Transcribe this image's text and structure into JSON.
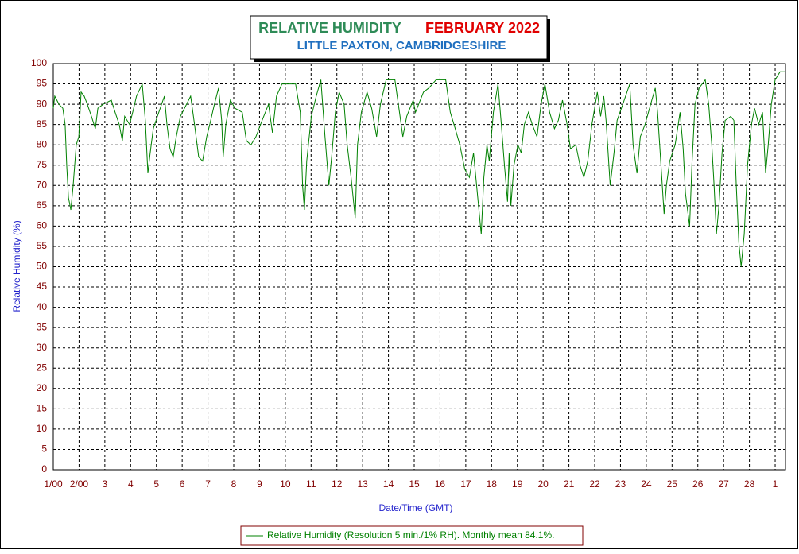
{
  "chart_data": {
    "type": "line",
    "title": "RELATIVE HUMIDITY",
    "title_month": "FEBRUARY 2022",
    "subtitle": "LITTLE PAXTON, CAMBRIDGESHIRE",
    "x_label": "Date/Time (GMT)",
    "y_label": "Relative Humidity (%)",
    "xlim": [
      0,
      28.4
    ],
    "ylim": [
      0,
      100
    ],
    "xticks": [
      {
        "value": 0,
        "label": "1/00"
      },
      {
        "value": 1,
        "label": "2/00"
      },
      {
        "value": 2,
        "label": "3"
      },
      {
        "value": 3,
        "label": "4"
      },
      {
        "value": 4,
        "label": "5"
      },
      {
        "value": 5,
        "label": "6"
      },
      {
        "value": 6,
        "label": "7"
      },
      {
        "value": 7,
        "label": "8"
      },
      {
        "value": 8,
        "label": "9"
      },
      {
        "value": 9,
        "label": "10"
      },
      {
        "value": 10,
        "label": "11"
      },
      {
        "value": 11,
        "label": "12"
      },
      {
        "value": 12,
        "label": "13"
      },
      {
        "value": 13,
        "label": "14"
      },
      {
        "value": 14,
        "label": "15"
      },
      {
        "value": 15,
        "label": "16"
      },
      {
        "value": 16,
        "label": "17"
      },
      {
        "value": 17,
        "label": "18"
      },
      {
        "value": 18,
        "label": "19"
      },
      {
        "value": 19,
        "label": "20"
      },
      {
        "value": 20,
        "label": "21"
      },
      {
        "value": 21,
        "label": "22"
      },
      {
        "value": 22,
        "label": "23"
      },
      {
        "value": 23,
        "label": "24"
      },
      {
        "value": 24,
        "label": "25"
      },
      {
        "value": 25,
        "label": "26"
      },
      {
        "value": 26,
        "label": "27"
      },
      {
        "value": 27,
        "label": "28"
      },
      {
        "value": 28,
        "label": "1"
      }
    ],
    "yticks": [
      0,
      5,
      10,
      15,
      20,
      25,
      30,
      35,
      40,
      45,
      50,
      55,
      60,
      65,
      70,
      75,
      80,
      85,
      90,
      95,
      100
    ],
    "grid": true,
    "x": [
      0,
      0.06,
      0.22,
      0.37,
      0.46,
      0.52,
      0.59,
      0.68,
      0.77,
      0.89,
      0.99,
      1.08,
      1.2,
      1.32,
      1.48,
      1.63,
      1.73,
      1.94,
      2.25,
      2.4,
      2.56,
      2.68,
      2.77,
      2.96,
      3.08,
      3.23,
      3.45,
      3.57,
      3.67,
      3.76,
      3.88,
      4.04,
      4.31,
      4.41,
      4.53,
      4.65,
      4.77,
      4.93,
      5.33,
      5.48,
      5.64,
      5.79,
      5.95,
      6.07,
      6.25,
      6.41,
      6.53,
      6.59,
      6.69,
      6.87,
      7.05,
      7.33,
      7.49,
      7.67,
      7.86,
      8.1,
      8.35,
      8.5,
      8.66,
      8.87,
      9.4,
      9.58,
      9.67,
      9.74,
      9.83,
      10.01,
      10.2,
      10.38,
      10.54,
      10.69,
      10.81,
      10.94,
      11.09,
      11.28,
      11.4,
      11.55,
      11.71,
      11.8,
      11.95,
      12.17,
      12.35,
      12.54,
      12.69,
      12.91,
      13.25,
      13.43,
      13.56,
      13.71,
      13.96,
      14.05,
      14.36,
      14.57,
      14.85,
      15.22,
      15.4,
      15.59,
      15.77,
      15.96,
      16.14,
      16.3,
      16.51,
      16.6,
      16.7,
      16.82,
      16.91,
      17.07,
      17.25,
      17.38,
      17.5,
      17.62,
      17.68,
      17.75,
      17.87,
      18.02,
      18.15,
      18.27,
      18.43,
      18.58,
      18.76,
      18.92,
      19.07,
      19.25,
      19.44,
      19.59,
      19.75,
      19.93,
      20.06,
      20.27,
      20.43,
      20.58,
      20.73,
      20.89,
      21.1,
      21.23,
      21.35,
      21.44,
      21.6,
      21.75,
      21.87,
      22.09,
      22.36,
      22.49,
      22.64,
      22.77,
      22.95,
      23.17,
      23.35,
      23.44,
      23.57,
      23.69,
      23.78,
      23.91,
      24.12,
      24.31,
      24.43,
      24.52,
      24.68,
      24.77,
      24.89,
      25.05,
      25.29,
      25.42,
      25.54,
      25.63,
      25.72,
      25.82,
      25.94,
      26.06,
      26.28,
      26.4,
      26.49,
      26.59,
      26.68,
      26.8,
      26.93,
      27.08,
      27.2,
      27.36,
      27.51,
      27.63,
      27.73,
      27.85,
      28,
      28.19,
      28.37
    ],
    "series": [
      {
        "name": "Relative Humidity (Resolution 5 min./1% RH). Monthly mean 84.1%.",
        "color": "#008000",
        "values": [
          89,
          92,
          90,
          89,
          85,
          75,
          67,
          64,
          70,
          80,
          82,
          93,
          92,
          90,
          87,
          84,
          89,
          90,
          91,
          88,
          85,
          81,
          87,
          85,
          88,
          92,
          95,
          86,
          73,
          78,
          84,
          87,
          92,
          85,
          79,
          77,
          82,
          87,
          92,
          85,
          77,
          76,
          82,
          85,
          90,
          94,
          86,
          77,
          85,
          91,
          89,
          88,
          81,
          80,
          82,
          86,
          90,
          83,
          92,
          95,
          95,
          88,
          70,
          64,
          76,
          87,
          92,
          96,
          82,
          70,
          78,
          88,
          93,
          90,
          80,
          72,
          62,
          80,
          88,
          93,
          89,
          82,
          90,
          96,
          96,
          88,
          82,
          87,
          91,
          88,
          93,
          94,
          96,
          96,
          88,
          84,
          80,
          74,
          72,
          78,
          64,
          58,
          72,
          80,
          76,
          88,
          95,
          85,
          75,
          66,
          78,
          65,
          75,
          80,
          78,
          85,
          88,
          85,
          82,
          90,
          95,
          88,
          84,
          86,
          91,
          85,
          79,
          80,
          75,
          72,
          76,
          85,
          93,
          87,
          92,
          86,
          70,
          78,
          86,
          90,
          95,
          80,
          73,
          82,
          85,
          90,
          94,
          88,
          75,
          63,
          70,
          76,
          80,
          88,
          79,
          68,
          60,
          75,
          90,
          94,
          96,
          90,
          80,
          70,
          58,
          65,
          78,
          86,
          87,
          86,
          70,
          56,
          50,
          58,
          75,
          85,
          89,
          85,
          88,
          73,
          80,
          90,
          96,
          98,
          98
        ]
      }
    ]
  }
}
